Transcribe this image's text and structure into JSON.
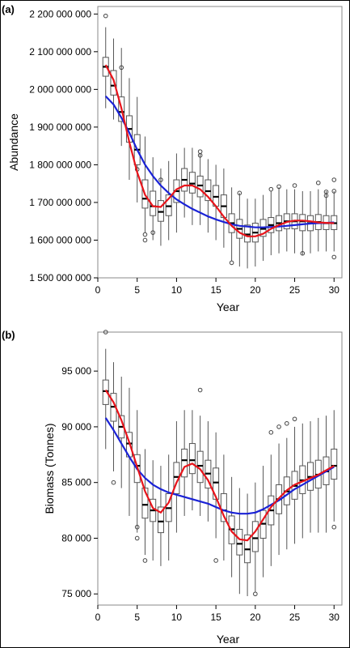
{
  "chart_data": [
    {
      "type": "box",
      "panel_label": "(a)",
      "xlabel": "Year",
      "ylabel": "Abundance",
      "xlim": [
        0,
        31
      ],
      "ylim": [
        1500000000,
        2220000000
      ],
      "x_ticks": [
        0,
        5,
        10,
        15,
        20,
        25,
        30
      ],
      "y_ticks": [
        1500000000,
        1600000000,
        1700000000,
        1800000000,
        1900000000,
        2000000000,
        2100000000,
        2200000000
      ],
      "y_tick_labels": [
        "1 500 000 000",
        "1 600 000 000",
        "1 700 000 000",
        "1 800 000 000",
        "1 900 000 000",
        "2 000 000 000",
        "2 100 000 000",
        "2 200 000 000"
      ],
      "colors": {
        "box": "#555555",
        "median": "#000000",
        "smooth_red": "#e8141b",
        "smooth_blue": "#1a22d6"
      },
      "boxes": [
        {
          "year": 1,
          "lo": 1950,
          "q1": 2035,
          "med": 2060,
          "q3": 2085,
          "hi": 2165,
          "out": [
            2195
          ]
        },
        {
          "year": 2,
          "lo": 1920,
          "q1": 1985,
          "med": 2010,
          "q3": 2050,
          "hi": 2135,
          "out": []
        },
        {
          "year": 3,
          "lo": 1850,
          "q1": 1915,
          "med": 1940,
          "q3": 1980,
          "hi": 2110,
          "out": [
            2058
          ]
        },
        {
          "year": 4,
          "lo": 1760,
          "q1": 1860,
          "med": 1895,
          "q3": 1930,
          "hi": 2030,
          "out": []
        },
        {
          "year": 5,
          "lo": 1700,
          "q1": 1800,
          "med": 1840,
          "q3": 1880,
          "hi": 1980,
          "out": [
            1788
          ]
        },
        {
          "year": 6,
          "lo": 1620,
          "q1": 1685,
          "med": 1710,
          "q3": 1760,
          "hi": 1875,
          "out": [
            1615,
            1600
          ]
        },
        {
          "year": 7,
          "lo": 1600,
          "q1": 1665,
          "med": 1690,
          "q3": 1730,
          "hi": 1820,
          "out": [
            1620
          ]
        },
        {
          "year": 8,
          "lo": 1585,
          "q1": 1650,
          "med": 1675,
          "q3": 1705,
          "hi": 1790,
          "out": [
            1760
          ]
        },
        {
          "year": 9,
          "lo": 1600,
          "q1": 1665,
          "med": 1690,
          "q3": 1720,
          "hi": 1810,
          "out": []
        },
        {
          "year": 10,
          "lo": 1620,
          "q1": 1700,
          "med": 1730,
          "q3": 1760,
          "hi": 1830,
          "out": []
        },
        {
          "year": 11,
          "lo": 1660,
          "q1": 1730,
          "med": 1760,
          "q3": 1790,
          "hi": 1845,
          "out": []
        },
        {
          "year": 12,
          "lo": 1640,
          "q1": 1725,
          "med": 1750,
          "q3": 1780,
          "hi": 1845,
          "out": []
        },
        {
          "year": 13,
          "lo": 1640,
          "q1": 1715,
          "med": 1745,
          "q3": 1770,
          "hi": 1830,
          "out": [
            1835,
            1825
          ]
        },
        {
          "year": 14,
          "lo": 1620,
          "q1": 1705,
          "med": 1730,
          "q3": 1760,
          "hi": 1815,
          "out": []
        },
        {
          "year": 15,
          "lo": 1600,
          "q1": 1690,
          "med": 1715,
          "q3": 1745,
          "hi": 1800,
          "out": []
        },
        {
          "year": 16,
          "lo": 1580,
          "q1": 1660,
          "med": 1690,
          "q3": 1720,
          "hi": 1790,
          "out": []
        },
        {
          "year": 17,
          "lo": 1545,
          "q1": 1620,
          "med": 1645,
          "q3": 1670,
          "hi": 1740,
          "out": [
            1540
          ]
        },
        {
          "year": 18,
          "lo": 1530,
          "q1": 1605,
          "med": 1630,
          "q3": 1655,
          "hi": 1725,
          "out": [
            1725
          ]
        },
        {
          "year": 19,
          "lo": 1525,
          "q1": 1595,
          "med": 1615,
          "q3": 1640,
          "hi": 1710,
          "out": []
        },
        {
          "year": 20,
          "lo": 1530,
          "q1": 1595,
          "med": 1620,
          "q3": 1645,
          "hi": 1710,
          "out": []
        },
        {
          "year": 21,
          "lo": 1545,
          "q1": 1610,
          "med": 1630,
          "q3": 1655,
          "hi": 1720,
          "out": []
        },
        {
          "year": 22,
          "lo": 1560,
          "q1": 1620,
          "med": 1640,
          "q3": 1660,
          "hi": 1730,
          "out": [
            1735
          ]
        },
        {
          "year": 23,
          "lo": 1565,
          "q1": 1625,
          "med": 1645,
          "q3": 1665,
          "hi": 1740,
          "out": [
            1742
          ]
        },
        {
          "year": 24,
          "lo": 1570,
          "q1": 1630,
          "med": 1650,
          "q3": 1670,
          "hi": 1735,
          "out": []
        },
        {
          "year": 25,
          "lo": 1565,
          "q1": 1630,
          "med": 1650,
          "q3": 1670,
          "hi": 1735,
          "out": [
            1745
          ]
        },
        {
          "year": 26,
          "lo": 1560,
          "q1": 1625,
          "med": 1650,
          "q3": 1668,
          "hi": 1730,
          "out": [
            1565
          ]
        },
        {
          "year": 27,
          "lo": 1565,
          "q1": 1625,
          "med": 1645,
          "q3": 1665,
          "hi": 1730,
          "out": []
        },
        {
          "year": 28,
          "lo": 1570,
          "q1": 1628,
          "med": 1648,
          "q3": 1668,
          "hi": 1735,
          "out": [
            1752
          ]
        },
        {
          "year": 29,
          "lo": 1570,
          "q1": 1628,
          "med": 1645,
          "q3": 1665,
          "hi": 1730,
          "out": [
            1728,
            1718
          ]
        },
        {
          "year": 30,
          "lo": 1570,
          "q1": 1628,
          "med": 1645,
          "q3": 1665,
          "hi": 1730,
          "out": [
            1760,
            1730,
            1555
          ]
        }
      ],
      "box_value_multiplier": 1000000,
      "smooth_red": [
        [
          1,
          2065
        ],
        [
          2,
          2025
        ],
        [
          3,
          1950
        ],
        [
          4,
          1860
        ],
        [
          5,
          1780
        ],
        [
          6,
          1720
        ],
        [
          7,
          1690
        ],
        [
          8,
          1688
        ],
        [
          9,
          1710
        ],
        [
          10,
          1735
        ],
        [
          11,
          1745
        ],
        [
          12,
          1745
        ],
        [
          13,
          1735
        ],
        [
          14,
          1715
        ],
        [
          15,
          1690
        ],
        [
          16,
          1662
        ],
        [
          17,
          1638
        ],
        [
          18,
          1620
        ],
        [
          19,
          1610
        ],
        [
          20,
          1610
        ],
        [
          21,
          1617
        ],
        [
          22,
          1630
        ],
        [
          23,
          1640
        ],
        [
          24,
          1648
        ],
        [
          25,
          1652
        ],
        [
          26,
          1652
        ],
        [
          27,
          1650
        ],
        [
          28,
          1647
        ],
        [
          29,
          1646
        ],
        [
          30,
          1645
        ]
      ],
      "smooth_blue": [
        [
          1,
          1982
        ],
        [
          2,
          1960
        ],
        [
          3,
          1925
        ],
        [
          4,
          1885
        ],
        [
          5,
          1840
        ],
        [
          6,
          1800
        ],
        [
          7,
          1770
        ],
        [
          8,
          1745
        ],
        [
          9,
          1725
        ],
        [
          10,
          1708
        ],
        [
          11,
          1695
        ],
        [
          12,
          1683
        ],
        [
          13,
          1673
        ],
        [
          14,
          1663
        ],
        [
          15,
          1655
        ],
        [
          16,
          1648
        ],
        [
          17,
          1642
        ],
        [
          18,
          1638
        ],
        [
          19,
          1636
        ],
        [
          20,
          1634
        ],
        [
          21,
          1634
        ],
        [
          22,
          1635
        ],
        [
          23,
          1636
        ],
        [
          24,
          1638
        ],
        [
          25,
          1640
        ],
        [
          26,
          1642
        ],
        [
          27,
          1644
        ],
        [
          28,
          1645
        ],
        [
          29,
          1646
        ],
        [
          30,
          1647
        ]
      ]
    },
    {
      "type": "box",
      "panel_label": "(b)",
      "xlabel": "Year",
      "ylabel": "Biomass (Tonnes)",
      "xlim": [
        0,
        31
      ],
      "ylim": [
        74000,
        98500
      ],
      "x_ticks": [
        0,
        5,
        10,
        15,
        20,
        25,
        30
      ],
      "y_ticks": [
        75000,
        80000,
        85000,
        90000,
        95000
      ],
      "y_tick_labels": [
        "75 000",
        "80 000",
        "85 000",
        "90 000",
        "95 000"
      ],
      "colors": {
        "box": "#555555",
        "median": "#000000",
        "smooth_red": "#e8141b",
        "smooth_blue": "#1a22d6"
      },
      "boxes": [
        {
          "year": 1,
          "lo": 88000,
          "q1": 92000,
          "med": 93200,
          "q3": 94200,
          "hi": 97000,
          "out": [
            98500
          ]
        },
        {
          "year": 2,
          "lo": 86000,
          "q1": 90500,
          "med": 91800,
          "q3": 93000,
          "hi": 95800,
          "out": [
            85000
          ]
        },
        {
          "year": 3,
          "lo": 84500,
          "q1": 89000,
          "med": 90000,
          "q3": 91000,
          "hi": 94500,
          "out": []
        },
        {
          "year": 4,
          "lo": 82000,
          "q1": 87300,
          "med": 88500,
          "q3": 89500,
          "hi": 93500,
          "out": []
        },
        {
          "year": 5,
          "lo": 80500,
          "q1": 85000,
          "med": 86500,
          "q3": 87500,
          "hi": 91500,
          "out": [
            81000,
            80000
          ]
        },
        {
          "year": 6,
          "lo": 78500,
          "q1": 81800,
          "med": 83000,
          "q3": 84500,
          "hi": 88000,
          "out": [
            78000
          ]
        },
        {
          "year": 7,
          "lo": 78000,
          "q1": 81500,
          "med": 82500,
          "q3": 83500,
          "hi": 87000,
          "out": []
        },
        {
          "year": 8,
          "lo": 77500,
          "q1": 80500,
          "med": 81500,
          "q3": 82800,
          "hi": 86500,
          "out": []
        },
        {
          "year": 9,
          "lo": 78000,
          "q1": 81500,
          "med": 82700,
          "q3": 84000,
          "hi": 87500,
          "out": []
        },
        {
          "year": 10,
          "lo": 80500,
          "q1": 84000,
          "med": 85500,
          "q3": 86800,
          "hi": 90500,
          "out": []
        },
        {
          "year": 11,
          "lo": 82000,
          "q1": 85500,
          "med": 87000,
          "q3": 88000,
          "hi": 91500,
          "out": []
        },
        {
          "year": 12,
          "lo": 82500,
          "q1": 85800,
          "med": 87000,
          "q3": 88500,
          "hi": 91500,
          "out": []
        },
        {
          "year": 13,
          "lo": 82000,
          "q1": 85000,
          "med": 86500,
          "q3": 87800,
          "hi": 91000,
          "out": [
            93300
          ]
        },
        {
          "year": 14,
          "lo": 81500,
          "q1": 84500,
          "med": 85800,
          "q3": 87000,
          "hi": 90500,
          "out": []
        },
        {
          "year": 15,
          "lo": 80000,
          "q1": 83500,
          "med": 85000,
          "q3": 86300,
          "hi": 89500,
          "out": [
            78000
          ]
        },
        {
          "year": 16,
          "lo": 78000,
          "q1": 81500,
          "med": 82500,
          "q3": 84000,
          "hi": 87500,
          "out": []
        },
        {
          "year": 17,
          "lo": 76500,
          "q1": 79500,
          "med": 80800,
          "q3": 82000,
          "hi": 85500,
          "out": []
        },
        {
          "year": 18,
          "lo": 75000,
          "q1": 78500,
          "med": 79500,
          "q3": 80800,
          "hi": 84500,
          "out": []
        },
        {
          "year": 19,
          "lo": 74800,
          "q1": 77800,
          "med": 79000,
          "q3": 80300,
          "hi": 84000,
          "out": []
        },
        {
          "year": 20,
          "lo": 75200,
          "q1": 78800,
          "med": 80000,
          "q3": 81500,
          "hi": 85000,
          "out": [
            75000
          ]
        },
        {
          "year": 21,
          "lo": 76500,
          "q1": 80000,
          "med": 81300,
          "q3": 82500,
          "hi": 86500,
          "out": []
        },
        {
          "year": 22,
          "lo": 77500,
          "q1": 81200,
          "med": 82500,
          "q3": 83800,
          "hi": 87500,
          "out": [
            89500
          ]
        },
        {
          "year": 23,
          "lo": 78500,
          "q1": 82200,
          "med": 83500,
          "q3": 84800,
          "hi": 88500,
          "out": [
            90000
          ]
        },
        {
          "year": 24,
          "lo": 79000,
          "q1": 83000,
          "med": 84200,
          "q3": 85500,
          "hi": 89000,
          "out": [
            90300
          ]
        },
        {
          "year": 25,
          "lo": 79500,
          "q1": 83500,
          "med": 84700,
          "q3": 86000,
          "hi": 90000,
          "out": [
            90700
          ]
        },
        {
          "year": 26,
          "lo": 80000,
          "q1": 84000,
          "med": 85200,
          "q3": 86500,
          "hi": 90300,
          "out": []
        },
        {
          "year": 27,
          "lo": 80500,
          "q1": 84300,
          "med": 85500,
          "q3": 86800,
          "hi": 90500,
          "out": []
        },
        {
          "year": 28,
          "lo": 80500,
          "q1": 84500,
          "med": 85700,
          "q3": 87000,
          "hi": 90800,
          "out": []
        },
        {
          "year": 29,
          "lo": 80500,
          "q1": 84800,
          "med": 86000,
          "q3": 87300,
          "hi": 91000,
          "out": []
        },
        {
          "year": 30,
          "lo": 81500,
          "q1": 85300,
          "med": 86500,
          "q3": 88000,
          "hi": 91500,
          "out": [
            81000
          ]
        }
      ],
      "box_value_multiplier": 1,
      "smooth_red": [
        [
          1,
          93300
        ],
        [
          2,
          92200
        ],
        [
          3,
          90600
        ],
        [
          4,
          88600
        ],
        [
          5,
          86400
        ],
        [
          6,
          84200
        ],
        [
          7,
          82700
        ],
        [
          8,
          82300
        ],
        [
          9,
          83200
        ],
        [
          10,
          85000
        ],
        [
          11,
          86400
        ],
        [
          12,
          86700
        ],
        [
          13,
          86200
        ],
        [
          14,
          85200
        ],
        [
          15,
          83700
        ],
        [
          16,
          82000
        ],
        [
          17,
          80600
        ],
        [
          18,
          79900
        ],
        [
          19,
          79800
        ],
        [
          20,
          80600
        ],
        [
          21,
          81700
        ],
        [
          22,
          82800
        ],
        [
          23,
          83600
        ],
        [
          24,
          84300
        ],
        [
          25,
          84800
        ],
        [
          26,
          85100
        ],
        [
          27,
          85400
        ],
        [
          28,
          85700
        ],
        [
          29,
          86100
        ],
        [
          30,
          86500
        ]
      ],
      "smooth_blue": [
        [
          1,
          90800
        ],
        [
          2,
          89700
        ],
        [
          3,
          88500
        ],
        [
          4,
          87300
        ],
        [
          5,
          86200
        ],
        [
          6,
          85400
        ],
        [
          7,
          84800
        ],
        [
          8,
          84400
        ],
        [
          9,
          84100
        ],
        [
          10,
          83900
        ],
        [
          11,
          83700
        ],
        [
          12,
          83500
        ],
        [
          13,
          83300
        ],
        [
          14,
          83100
        ],
        [
          15,
          82800
        ],
        [
          16,
          82500
        ],
        [
          17,
          82300
        ],
        [
          18,
          82200
        ],
        [
          19,
          82200
        ],
        [
          20,
          82300
        ],
        [
          21,
          82600
        ],
        [
          22,
          83000
        ],
        [
          23,
          83400
        ],
        [
          24,
          83900
        ],
        [
          25,
          84400
        ],
        [
          26,
          84800
        ],
        [
          27,
          85200
        ],
        [
          28,
          85600
        ],
        [
          29,
          86000
        ],
        [
          30,
          86400
        ]
      ]
    }
  ]
}
